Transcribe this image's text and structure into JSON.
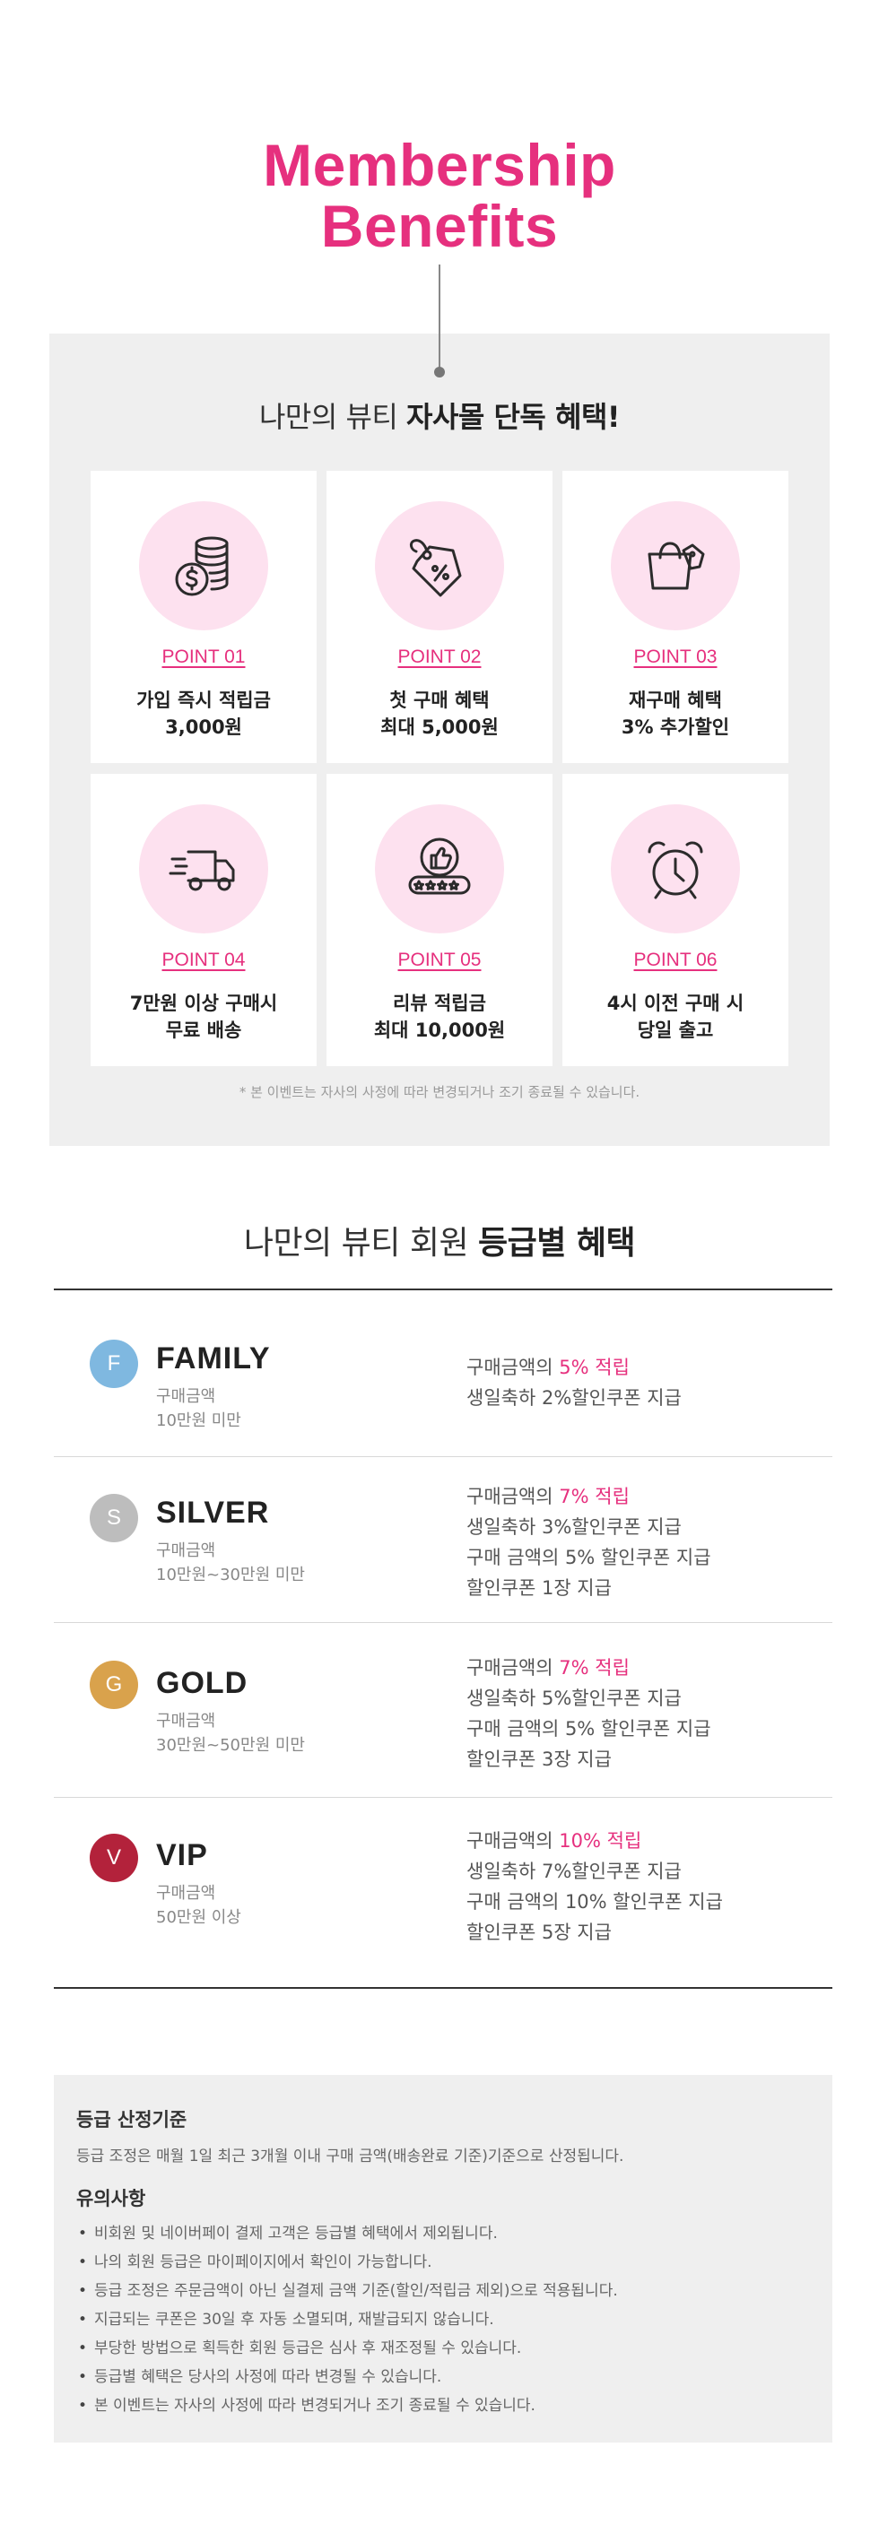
{
  "hero": {
    "line1": "Membership",
    "line2": "Benefits"
  },
  "benefits": {
    "heading_light": "나만의 뷰티 ",
    "heading_bold": "자사몰 단독 혜택!",
    "cards": [
      {
        "point": "POINT 01",
        "line1": "가입 즉시 적립금",
        "line2": "3,000원",
        "icon": "coins-icon"
      },
      {
        "point": "POINT 02",
        "line1": "첫 구매 혜택",
        "line2": "최대 5,000원",
        "icon": "discount-tag-icon"
      },
      {
        "point": "POINT 03",
        "line1": "재구매 혜택",
        "line2": "3% 추가할인",
        "icon": "shopping-bag-icon"
      },
      {
        "point": "POINT 04",
        "line1": "7만원 이상 구매시",
        "line2": "무료 배송",
        "icon": "delivery-truck-icon"
      },
      {
        "point": "POINT 05",
        "line1": "리뷰 적립금",
        "line2": "최대 10,000원",
        "icon": "thumbs-up-review-icon"
      },
      {
        "point": "POINT 06",
        "line1": "4시 이전 구매 시",
        "line2": "당일 출고",
        "icon": "alarm-clock-icon"
      }
    ],
    "note": "* 본 이벤트는 자사의 사정에 따라 변경되거나 조기 종료될 수 있습니다."
  },
  "grades": {
    "heading_light": "나만의 뷰티 회원 ",
    "heading_bold": "등급별 혜택",
    "items": [
      {
        "letter": "F",
        "name": "FAMILY",
        "color": "#7fb8e0",
        "sub1": "구매금액",
        "sub2": "10만원 미만",
        "benefit_prefix": "구매금액의 ",
        "benefit_highlight": "5% 적립",
        "benefits": [
          "생일축하 2%할인쿠폰 지급"
        ]
      },
      {
        "letter": "S",
        "name": "SILVER",
        "color": "#bdbdbd",
        "sub1": "구매금액",
        "sub2": "10만원~30만원 미만",
        "benefit_prefix": "구매금액의 ",
        "benefit_highlight": "7% 적립",
        "benefits": [
          "생일축하 3%할인쿠폰 지급",
          "구매 금액의 5% 할인쿠폰 지급",
          "할인쿠폰 1장 지급"
        ]
      },
      {
        "letter": "G",
        "name": "GOLD",
        "color": "#d9a24c",
        "sub1": "구매금액",
        "sub2": "30만원~50만원 미만",
        "benefit_prefix": "구매금액의 ",
        "benefit_highlight": "7% 적립",
        "benefits": [
          "생일축하 5%할인쿠폰 지급",
          "구매 금액의 5% 할인쿠폰 지급",
          "할인쿠폰 3장 지급"
        ]
      },
      {
        "letter": "V",
        "name": "VIP",
        "color": "#b3223b",
        "sub1": "구매금액",
        "sub2": "50만원 이상",
        "benefit_prefix": "구매금액의 ",
        "benefit_highlight": "10% 적립",
        "benefits": [
          "생일축하 7%할인쿠폰 지급",
          "구매 금액의 10% 할인쿠폰 지급",
          "할인쿠폰 5장 지급"
        ]
      }
    ]
  },
  "notice": {
    "criteria_title": "등급 산정기준",
    "criteria_text": "등급 조정은 매월 1일 최근 3개월 이내 구매 금액(배송완료 기준)기준으로 산정됩니다.",
    "caution_title": "유의사항",
    "cautions": [
      "비회원 및 네이버페이 결제 고객은 등급별 혜택에서 제외됩니다.",
      "나의 회원 등급은 마이페이지에서 확인이 가능합니다.",
      "등급 조정은 주문금액이 아닌 실결제 금액 기준(할인/적립금 제외)으로 적용됩니다.",
      "지급되는 쿠폰은 30일 후 자동 소멸되며, 재발급되지 않습니다.",
      "부당한 방법으로 획득한 회원 등급은 심사 후 재조정될 수 있습니다.",
      "등급별 혜택은 당사의 사정에 따라 변경될 수 있습니다.",
      "본 이벤트는 자사의 사정에 따라 변경되거나 조기 종료될 수 있습니다."
    ]
  },
  "colors": {
    "accent": "#e6307e",
    "circle_bg": "#fde1ef",
    "panel_bg": "#efefef"
  }
}
